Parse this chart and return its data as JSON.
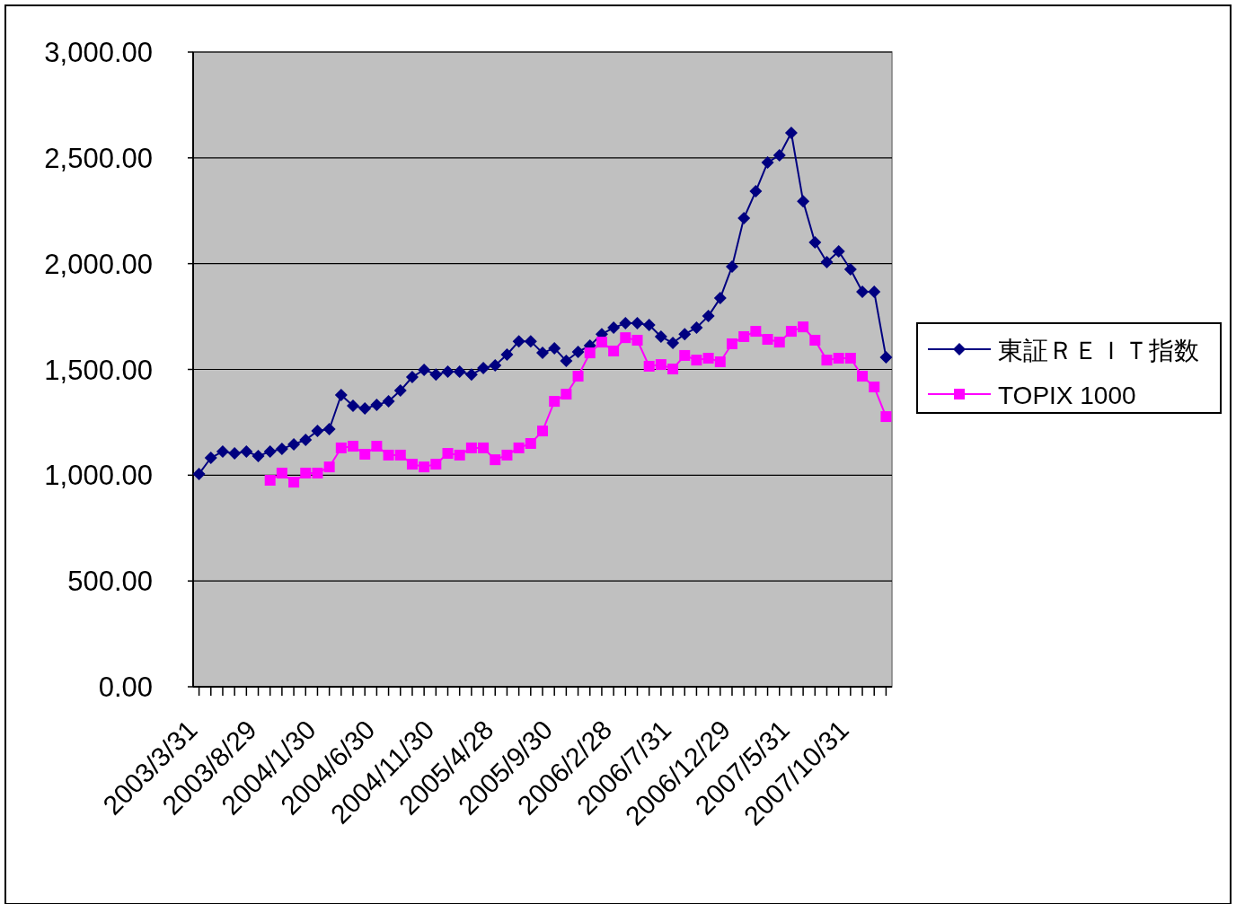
{
  "chart_data": {
    "type": "line",
    "categories": [
      "2003/3/31",
      null,
      null,
      null,
      null,
      "2003/8/29",
      null,
      null,
      null,
      null,
      "2004/1/30",
      null,
      null,
      null,
      null,
      "2004/6/30",
      null,
      null,
      null,
      null,
      "2004/11/30",
      null,
      null,
      null,
      null,
      "2005/4/28",
      null,
      null,
      null,
      null,
      "2005/9/30",
      null,
      null,
      null,
      null,
      "2006/2/28",
      null,
      null,
      null,
      null,
      "2006/7/31",
      null,
      null,
      null,
      null,
      "2006/12/29",
      null,
      null,
      null,
      null,
      "2007/5/31",
      null,
      null,
      null,
      null,
      "2007/10/31",
      null,
      null,
      null
    ],
    "series": [
      {
        "name": "東証ＲＥＩＴ指数",
        "color": "#000080",
        "marker": "diamond",
        "values": [
          1006,
          1082,
          1112,
          1103,
          1112,
          1090,
          1112,
          1124,
          1146,
          1167,
          1209,
          1218,
          1379,
          1328,
          1315,
          1332,
          1349,
          1400,
          1464,
          1498,
          1476,
          1489,
          1489,
          1476,
          1506,
          1519,
          1570,
          1633,
          1633,
          1578,
          1600,
          1540,
          1583,
          1612,
          1667,
          1697,
          1718,
          1718,
          1710,
          1655,
          1625,
          1667,
          1697,
          1752,
          1837,
          1986,
          2215,
          2342,
          2478,
          2512,
          2618,
          2295,
          2100,
          2007,
          2058,
          1973,
          1867,
          1867,
          1557
        ]
      },
      {
        "name": "TOPIX 1000",
        "color": "#ff00ff",
        "marker": "square",
        "values": [
          null,
          null,
          null,
          null,
          null,
          null,
          976,
          1010,
          967,
          1010,
          1010,
          1039,
          1129,
          1137,
          1099,
          1137,
          1095,
          1095,
          1052,
          1039,
          1052,
          1103,
          1095,
          1129,
          1129,
          1073,
          1095,
          1129,
          1150,
          1209,
          1349,
          1383,
          1468,
          1578,
          1629,
          1587,
          1650,
          1638,
          1515,
          1523,
          1502,
          1566,
          1544,
          1553,
          1536,
          1621,
          1655,
          1680,
          1642,
          1629,
          1680,
          1701,
          1638,
          1544,
          1553,
          1553,
          1468,
          1417,
          1277
        ]
      }
    ],
    "ylim": [
      0,
      3000
    ],
    "yticks": [
      {
        "value": 0,
        "label": "0.00"
      },
      {
        "value": 500,
        "label": "500.00"
      },
      {
        "value": 1000,
        "label": "1,000.00"
      },
      {
        "value": 1500,
        "label": "1,500.00"
      },
      {
        "value": 2000,
        "label": "2,000.00"
      },
      {
        "value": 2500,
        "label": "2,500.00"
      },
      {
        "value": 3000,
        "label": "3,000.00"
      }
    ],
    "grid": "y",
    "legend": "right"
  }
}
